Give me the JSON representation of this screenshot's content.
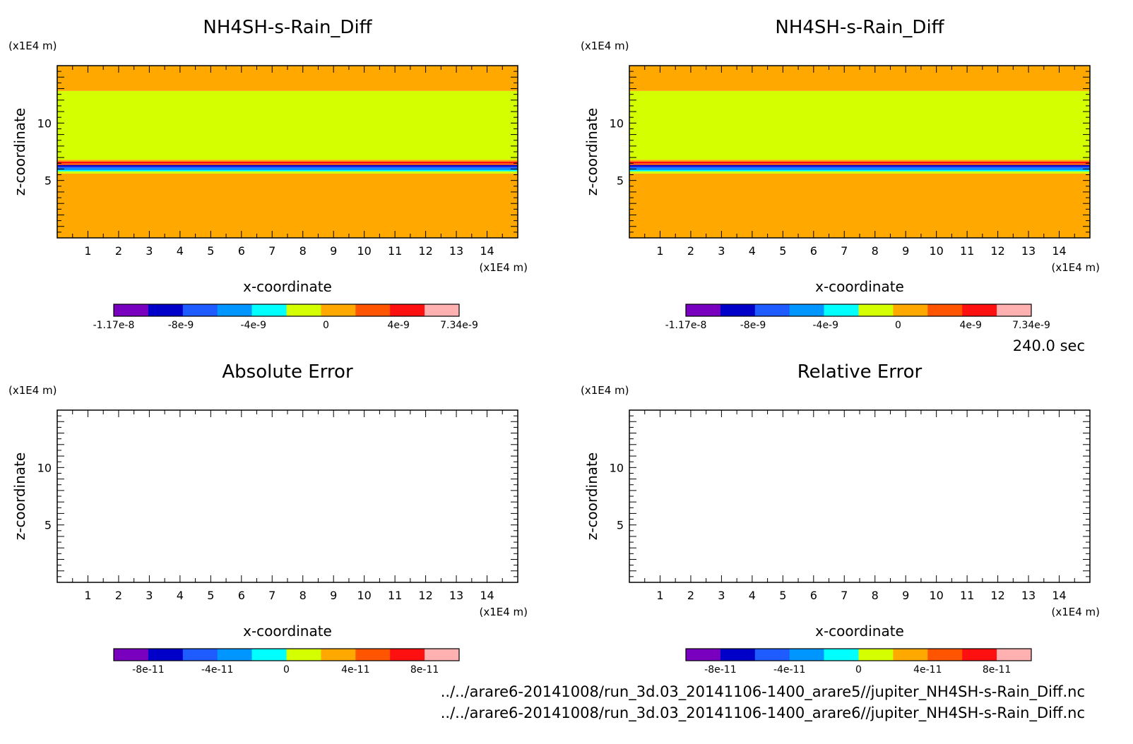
{
  "time_label": "240.0 sec",
  "footer": {
    "line1": "../../arare6-20141008/run_3d.03_20141106-1400_arare5//jupiter_NH4SH-s-Rain_Diff.nc",
    "line2": "../../arare6-20141008/run_3d.03_20141106-1400_arare6//jupiter_NH4SH-s-Rain_Diff.nc"
  },
  "colors": {
    "palette": [
      "#7a00c0",
      "#0000c8",
      "#1e5cff",
      "#0096ff",
      "#00ffff",
      "#d4ff00",
      "#ffa800",
      "#ff5500",
      "#ff1010",
      "#ffb0b0"
    ],
    "background_upper": "#ffa800",
    "main_field": "#d4ff00",
    "background_lower": "#ffa800"
  },
  "chart_data": [
    {
      "id": "top-left",
      "type": "heatmap",
      "title": "NH4SH-s-Rain_Diff",
      "xlabel": "x-coordinate",
      "ylabel": "z-coordinate",
      "x_unit": "(x1E4 m)",
      "y_unit": "(x1E4 m)",
      "xlim": [
        0,
        15
      ],
      "ylim": [
        0,
        15
      ],
      "xticks": [
        "1",
        "2",
        "3",
        "4",
        "5",
        "6",
        "7",
        "8",
        "9",
        "10",
        "11",
        "12",
        "13",
        "14"
      ],
      "yticks": [
        "5",
        "10"
      ],
      "colorbar_range": [
        -1.17e-08,
        7.34e-09
      ],
      "colorbar_labels": [
        "-1.17e-8",
        "-8e-9",
        "-4e-9",
        "0",
        "4e-9",
        "7.34e-9"
      ],
      "colorbar_label_values": [
        -1.17e-08,
        -8e-09,
        -4e-09,
        0,
        4e-09,
        7.34e-09
      ],
      "layers": [
        {
          "z_from": 0,
          "z_to": 5.6,
          "color_index": 6
        },
        {
          "z_from": 5.6,
          "z_to": 5.8,
          "color_index": 5
        },
        {
          "z_from": 5.8,
          "z_to": 5.9,
          "color_index": 4
        },
        {
          "z_from": 5.9,
          "z_to": 6.05,
          "color_index": 3
        },
        {
          "z_from": 6.05,
          "z_to": 6.2,
          "color_index": 2
        },
        {
          "z_from": 6.2,
          "z_to": 6.35,
          "color_index": 1
        },
        {
          "z_from": 6.35,
          "z_to": 6.5,
          "color_index": 7
        },
        {
          "z_from": 6.5,
          "z_to": 6.65,
          "color_index": 8
        },
        {
          "z_from": 6.65,
          "z_to": 6.8,
          "color_index": 6
        },
        {
          "z_from": 6.8,
          "z_to": 12.8,
          "color_index": 5
        },
        {
          "z_from": 12.8,
          "z_to": 15,
          "color_index": 6
        }
      ]
    },
    {
      "id": "top-right",
      "type": "heatmap",
      "title": "NH4SH-s-Rain_Diff",
      "xlabel": "x-coordinate",
      "ylabel": "z-coordinate",
      "x_unit": "(x1E4 m)",
      "y_unit": "(x1E4 m)",
      "xlim": [
        0,
        15
      ],
      "ylim": [
        0,
        15
      ],
      "xticks": [
        "1",
        "2",
        "3",
        "4",
        "5",
        "6",
        "7",
        "8",
        "9",
        "10",
        "11",
        "12",
        "13",
        "14"
      ],
      "yticks": [
        "5",
        "10"
      ],
      "colorbar_range": [
        -1.17e-08,
        7.34e-09
      ],
      "colorbar_labels": [
        "-1.17e-8",
        "-8e-9",
        "-4e-9",
        "0",
        "4e-9",
        "7.34e-9"
      ],
      "colorbar_label_values": [
        -1.17e-08,
        -8e-09,
        -4e-09,
        0,
        4e-09,
        7.34e-09
      ],
      "layers": [
        {
          "z_from": 0,
          "z_to": 5.6,
          "color_index": 6
        },
        {
          "z_from": 5.6,
          "z_to": 5.8,
          "color_index": 5
        },
        {
          "z_from": 5.8,
          "z_to": 5.9,
          "color_index": 4
        },
        {
          "z_from": 5.9,
          "z_to": 6.05,
          "color_index": 3
        },
        {
          "z_from": 6.05,
          "z_to": 6.2,
          "color_index": 2
        },
        {
          "z_from": 6.2,
          "z_to": 6.35,
          "color_index": 1
        },
        {
          "z_from": 6.35,
          "z_to": 6.5,
          "color_index": 7
        },
        {
          "z_from": 6.5,
          "z_to": 6.65,
          "color_index": 8
        },
        {
          "z_from": 6.65,
          "z_to": 6.8,
          "color_index": 6
        },
        {
          "z_from": 6.8,
          "z_to": 12.8,
          "color_index": 5
        },
        {
          "z_from": 12.8,
          "z_to": 15,
          "color_index": 6
        }
      ]
    },
    {
      "id": "bottom-left",
      "type": "heatmap",
      "title": "Absolute Error",
      "xlabel": "x-coordinate",
      "ylabel": "z-coordinate",
      "x_unit": "(x1E4 m)",
      "y_unit": "(x1E4 m)",
      "xlim": [
        0,
        15
      ],
      "ylim": [
        0,
        15
      ],
      "xticks": [
        "1",
        "2",
        "3",
        "4",
        "5",
        "6",
        "7",
        "8",
        "9",
        "10",
        "11",
        "12",
        "13",
        "14"
      ],
      "yticks": [
        "5",
        "10"
      ],
      "colorbar_range": [
        -1e-10,
        1e-10
      ],
      "colorbar_labels": [
        "-8e-11",
        "-4e-11",
        "0",
        "4e-11",
        "8e-11"
      ],
      "colorbar_label_values": [
        -8e-11,
        -4e-11,
        0,
        4e-11,
        8e-11
      ],
      "layers": []
    },
    {
      "id": "bottom-right",
      "type": "heatmap",
      "title": "Relative Error",
      "xlabel": "x-coordinate",
      "ylabel": "z-coordinate",
      "x_unit": "(x1E4 m)",
      "y_unit": "(x1E4 m)",
      "xlim": [
        0,
        15
      ],
      "ylim": [
        0,
        15
      ],
      "xticks": [
        "1",
        "2",
        "3",
        "4",
        "5",
        "6",
        "7",
        "8",
        "9",
        "10",
        "11",
        "12",
        "13",
        "14"
      ],
      "yticks": [
        "5",
        "10"
      ],
      "colorbar_range": [
        -1e-10,
        1e-10
      ],
      "colorbar_labels": [
        "-8e-11",
        "-4e-11",
        "0",
        "4e-11",
        "8e-11"
      ],
      "colorbar_label_values": [
        -8e-11,
        -4e-11,
        0,
        4e-11,
        8e-11
      ],
      "layers": []
    }
  ]
}
